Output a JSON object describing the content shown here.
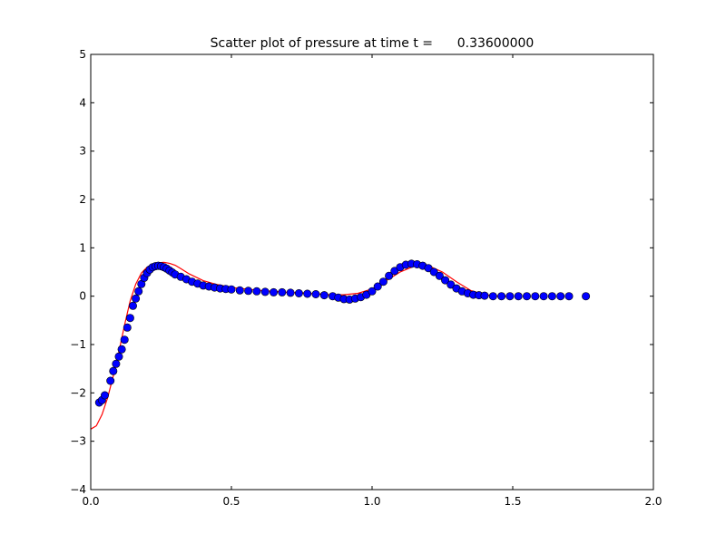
{
  "chart_data": {
    "type": "scatter",
    "title": "Scatter plot of pressure at time t =      0.33600000",
    "xlabel": "",
    "ylabel": "",
    "xlim": [
      0.0,
      2.0
    ],
    "ylim": [
      -4,
      5
    ],
    "grid": false,
    "x_ticks": [
      0.0,
      0.5,
      1.0,
      1.5,
      2.0
    ],
    "x_tick_labels": [
      "0.0",
      "0.5",
      "1.0",
      "1.5",
      "2.0"
    ],
    "y_ticks": [
      -4,
      -3,
      -2,
      -1,
      0,
      1,
      2,
      3,
      4,
      5
    ],
    "y_tick_labels": [
      "−4",
      "−3",
      "−2",
      "−1",
      "0",
      "1",
      "2",
      "3",
      "4",
      "5"
    ],
    "colors": {
      "points": "#0000ff",
      "point_edge": "#000000",
      "line": "#ff0000"
    },
    "series": [
      {
        "kind": "scatter",
        "x": [
          0.03,
          0.04,
          0.05,
          0.07,
          0.08,
          0.09,
          0.1,
          0.11,
          0.12,
          0.13,
          0.14,
          0.15,
          0.16,
          0.17,
          0.18,
          0.19,
          0.2,
          0.21,
          0.22,
          0.23,
          0.24,
          0.25,
          0.26,
          0.27,
          0.28,
          0.29,
          0.3,
          0.32,
          0.34,
          0.36,
          0.38,
          0.4,
          0.42,
          0.44,
          0.46,
          0.48,
          0.5,
          0.53,
          0.56,
          0.59,
          0.62,
          0.65,
          0.68,
          0.71,
          0.74,
          0.77,
          0.8,
          0.83,
          0.86,
          0.88,
          0.9,
          0.92,
          0.94,
          0.96,
          0.98,
          1.0,
          1.02,
          1.04,
          1.06,
          1.08,
          1.1,
          1.12,
          1.14,
          1.16,
          1.18,
          1.2,
          1.22,
          1.24,
          1.26,
          1.28,
          1.3,
          1.32,
          1.34,
          1.36,
          1.38,
          1.4,
          1.43,
          1.46,
          1.49,
          1.52,
          1.55,
          1.58,
          1.61,
          1.64,
          1.67,
          1.7,
          1.76
        ],
        "y": [
          -2.2,
          -2.15,
          -2.05,
          -1.75,
          -1.55,
          -1.4,
          -1.25,
          -1.1,
          -0.9,
          -0.65,
          -0.45,
          -0.2,
          -0.05,
          0.1,
          0.25,
          0.38,
          0.48,
          0.55,
          0.6,
          0.62,
          0.63,
          0.62,
          0.6,
          0.57,
          0.53,
          0.49,
          0.45,
          0.4,
          0.35,
          0.3,
          0.26,
          0.22,
          0.2,
          0.18,
          0.16,
          0.15,
          0.14,
          0.12,
          0.11,
          0.1,
          0.09,
          0.08,
          0.08,
          0.07,
          0.06,
          0.05,
          0.04,
          0.02,
          0.0,
          -0.03,
          -0.06,
          -0.07,
          -0.05,
          -0.02,
          0.03,
          0.1,
          0.2,
          0.3,
          0.42,
          0.52,
          0.6,
          0.65,
          0.67,
          0.66,
          0.63,
          0.58,
          0.5,
          0.42,
          0.33,
          0.24,
          0.16,
          0.1,
          0.06,
          0.03,
          0.02,
          0.01,
          0.0,
          0.0,
          0.0,
          0.0,
          0.0,
          0.0,
          0.0,
          0.0,
          0.0,
          0.0,
          0.0
        ]
      },
      {
        "kind": "line",
        "x": [
          0.0,
          0.02,
          0.04,
          0.06,
          0.08,
          0.1,
          0.12,
          0.14,
          0.16,
          0.18,
          0.2,
          0.22,
          0.24,
          0.26,
          0.28,
          0.3,
          0.32,
          0.35,
          0.4,
          0.45,
          0.5,
          0.6,
          0.7,
          0.8,
          0.85,
          0.9,
          0.95,
          1.0,
          1.05,
          1.1,
          1.15,
          1.18,
          1.2,
          1.25,
          1.3,
          1.35,
          1.4,
          1.45,
          1.5
        ],
        "y": [
          -2.75,
          -2.68,
          -2.45,
          -2.1,
          -1.65,
          -1.15,
          -0.6,
          -0.1,
          0.25,
          0.48,
          0.6,
          0.66,
          0.69,
          0.7,
          0.68,
          0.64,
          0.57,
          0.46,
          0.32,
          0.24,
          0.18,
          0.12,
          0.08,
          0.05,
          0.03,
          0.03,
          0.06,
          0.15,
          0.32,
          0.5,
          0.62,
          0.65,
          0.63,
          0.5,
          0.3,
          0.12,
          0.03,
          0.0,
          0.0
        ]
      }
    ]
  }
}
